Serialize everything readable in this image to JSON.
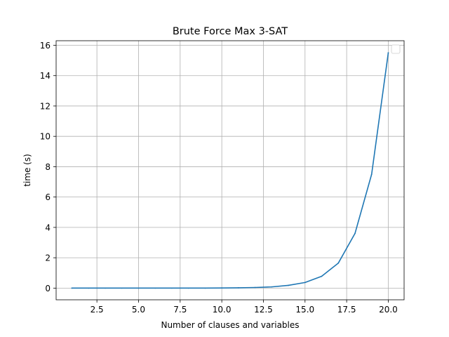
{
  "chart_data": {
    "type": "line",
    "title": "Brute Force Max 3-SAT",
    "xlabel": "Number of clauses and variables",
    "ylabel": "time (s)",
    "xlim": [
      0.05,
      20.95
    ],
    "ylim": [
      -0.77,
      16.3
    ],
    "xticks": [
      2.5,
      5.0,
      7.5,
      10.0,
      12.5,
      15.0,
      17.5,
      20.0
    ],
    "xtick_labels": [
      "2.5",
      "5.0",
      "7.5",
      "10.0",
      "12.5",
      "15.0",
      "17.5",
      "20.0"
    ],
    "yticks": [
      0,
      2,
      4,
      6,
      8,
      10,
      12,
      14,
      16
    ],
    "ytick_labels": [
      "0",
      "2",
      "4",
      "6",
      "8",
      "10",
      "12",
      "14",
      "16"
    ],
    "grid": true,
    "legend": {
      "placement": "top-right",
      "entries": []
    },
    "series": [
      {
        "name": "",
        "color": "#1f77b4",
        "x": [
          1,
          2,
          3,
          4,
          5,
          6,
          7,
          8,
          9,
          10,
          11,
          12,
          13,
          14,
          15,
          16,
          17,
          18,
          19,
          20
        ],
        "values": [
          0.0,
          0.0,
          0.0,
          0.0,
          0.0,
          0.0,
          0.0,
          0.0,
          0.0,
          0.01,
          0.02,
          0.04,
          0.08,
          0.18,
          0.37,
          0.78,
          1.65,
          3.6,
          7.5,
          15.5
        ]
      }
    ]
  }
}
